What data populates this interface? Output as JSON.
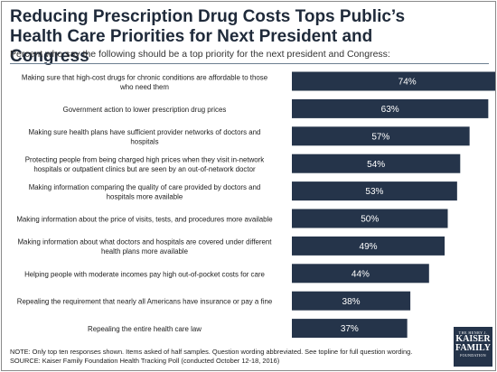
{
  "title": "Reducing Prescription Drug Costs Tops Public’s Health Care Priorities for Next President and Congress",
  "subtitle": "Percent who say the following should be a top priority for the next president and Congress:",
  "footnote_note": "NOTE: Only top ten responses shown. Items asked of half samples. Question wording abbreviated. See topline for full question wording.",
  "footnote_source": "SOURCE: Kaiser Family Foundation Health Tracking Poll (conducted October 12-18, 2016)",
  "logo": {
    "line1": "THE HENRY J.",
    "line2": "KAISER",
    "line3": "FAMILY",
    "line4": "FOUNDATION"
  },
  "colors": {
    "bar": "#25344a",
    "bar_label": "#ffffff",
    "title": "#1f2a3a"
  },
  "chart_data": {
    "type": "bar",
    "orientation": "horizontal",
    "value_suffix": "%",
    "xlim": [
      0,
      80
    ],
    "categories": [
      [
        "Making sure that high-cost drugs for chronic conditions are affordable to those",
        "who need them"
      ],
      [
        "Government action to lower prescription drug prices"
      ],
      [
        "Making sure health plans have sufficient provider networks of doctors and",
        "hospitals"
      ],
      [
        "Protecting people from being charged high prices when they visit in-network",
        "hospitals or outpatient clinics but are seen by an out-of-network doctor"
      ],
      [
        "Making information comparing the quality of care provided by doctors and",
        "hospitals more available"
      ],
      [
        "Making information about the price of visits, tests, and procedures more available"
      ],
      [
        "Making information about what doctors and hospitals are covered under different",
        "health plans more available"
      ],
      [
        "Helping people with moderate incomes pay high out-of-pocket costs for care"
      ],
      [
        "Repealing the requirement that nearly all Americans have insurance or pay a fine"
      ],
      [
        "Repealing the entire health care law"
      ]
    ],
    "values": [
      74,
      63,
      57,
      54,
      53,
      50,
      49,
      44,
      38,
      37
    ]
  }
}
